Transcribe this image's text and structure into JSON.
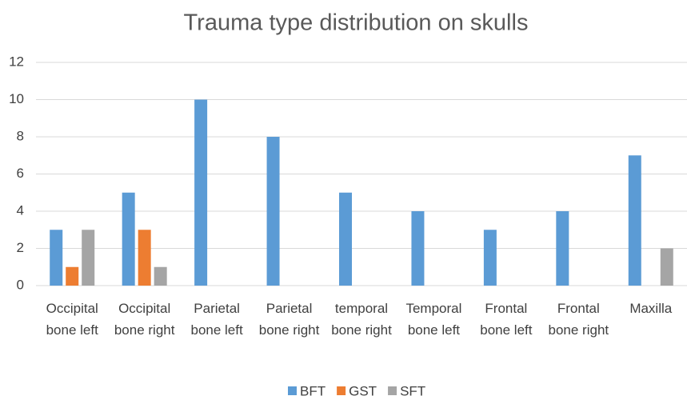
{
  "chart_data": {
    "type": "bar",
    "title": "Trauma type distribution on skulls",
    "categories": [
      "Occipital bone left",
      "Occipital bone right",
      "Parietal bone left",
      "Parietal bone right",
      "temporal bone right",
      "Temporal bone left",
      "Frontal bone left",
      "Frontal bone right",
      "Maxilla"
    ],
    "series": [
      {
        "name": "BFT",
        "color": "#5b9bd5",
        "values": [
          3,
          5,
          10,
          8,
          5,
          4,
          3,
          4,
          7
        ]
      },
      {
        "name": "GST",
        "color": "#ed7d31",
        "values": [
          1,
          3,
          0,
          0,
          0,
          0,
          0,
          0,
          0
        ]
      },
      {
        "name": "SFT",
        "color": "#a5a5a5",
        "values": [
          3,
          1,
          0,
          0,
          0,
          0,
          0,
          0,
          2
        ]
      }
    ],
    "ylim": [
      0,
      12
    ],
    "yticks": [
      0,
      2,
      4,
      6,
      8,
      10,
      12
    ],
    "grid": true,
    "legend": "bottom"
  }
}
